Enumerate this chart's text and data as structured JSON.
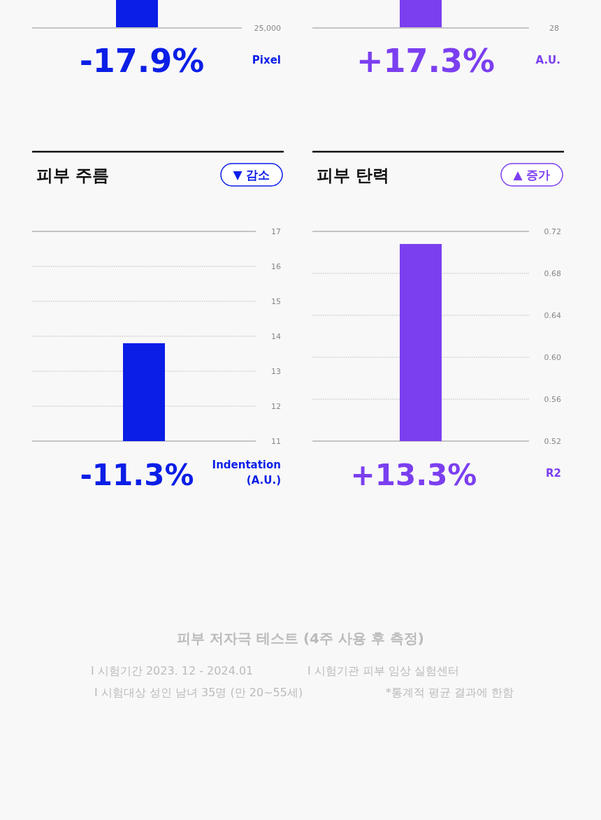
{
  "chart_data": [
    {
      "type": "other",
      "annotations": [
        "25,000",
        "-17.9%",
        "Pixel"
      ],
      "color": "#0b1ee6"
    },
    {
      "type": "other",
      "annotations": [
        "28",
        "+17.3%",
        "A.U."
      ],
      "color": "#7b3ff0"
    },
    {
      "type": "bar",
      "title": "피부 주름",
      "subtitle": "▼ 감소",
      "categories": [
        null
      ],
      "values": [
        13.8
      ],
      "color": "#0b1ee6",
      "ylim": [
        11,
        17
      ],
      "yticks": [
        11,
        12,
        13,
        14,
        15,
        16,
        17
      ],
      "grid": "y",
      "annotations": [
        "-11.3%",
        "Indentation (A.U.)"
      ]
    },
    {
      "type": "bar",
      "title": "피부 탄력",
      "subtitle": "▲ 증가",
      "categories": [
        null
      ],
      "values": [
        0.708
      ],
      "color": "#7b3ff0",
      "ylim": [
        0.52,
        0.72
      ],
      "yticks": [
        0.52,
        0.56,
        {
          "value": 0.6,
          "label": "0.60"
        },
        0.64,
        0.68,
        0.72
      ],
      "grid": "y",
      "annotations": [
        "+13.3%",
        "R2"
      ]
    },
    {
      "type": "other",
      "title": "피부 저자극 테스트 (4주 사용 후 측정)",
      "annotations": [
        "I 시험기간 2023. 12 - 2024.01",
        "I 시험기관 피부 임상 실험센터",
        "I 시험대상 성인 남녀 35명 (만 20~55세)",
        "*통계적 평균 결과에 한함"
      ]
    }
  ]
}
